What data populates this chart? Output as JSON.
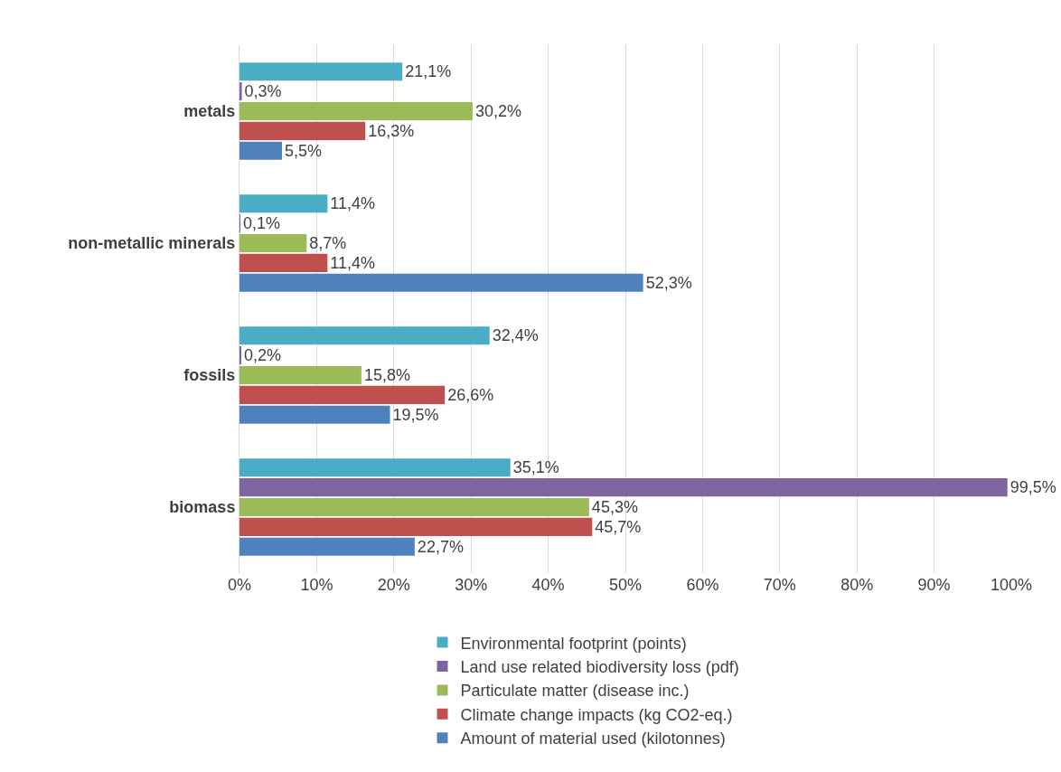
{
  "chart_data": {
    "type": "bar",
    "orientation": "horizontal",
    "categories": [
      "metals",
      "non-metallic minerals",
      "fossils",
      "biomass"
    ],
    "series": [
      {
        "name": "Environmental footprint (points)",
        "color": "#4bacc6",
        "values": [
          21.1,
          11.4,
          32.4,
          35.1
        ],
        "value_labels": [
          "21,1%",
          "11,4%",
          "32,4%",
          "35,1%"
        ]
      },
      {
        "name": "Land use related biodiversity loss (pdf)",
        "color": "#8064a2",
        "values": [
          0.3,
          0.1,
          0.2,
          99.5
        ],
        "value_labels": [
          "0,3%",
          "0,1%",
          "0,2%",
          "99,5%"
        ]
      },
      {
        "name": "Particulate matter (disease inc.)",
        "color": "#9bbb59",
        "values": [
          30.2,
          8.7,
          15.8,
          45.3
        ],
        "value_labels": [
          "30,2%",
          "8,7%",
          "15,8%",
          "45,3%"
        ]
      },
      {
        "name": "Climate change impacts (kg CO2-eq.)",
        "color": "#c0504d",
        "values": [
          16.3,
          11.4,
          26.6,
          45.7
        ],
        "value_labels": [
          "16,3%",
          "11,4%",
          "26,6%",
          "45,7%"
        ]
      },
      {
        "name": "Amount of material used (kilotonnes)",
        "color": "#4f81bd",
        "values": [
          5.5,
          52.3,
          19.5,
          22.7
        ],
        "value_labels": [
          "5,5%",
          "52,3%",
          "19,5%",
          "22,7%"
        ]
      }
    ],
    "xlim": [
      0,
      100
    ],
    "xticks": [
      {
        "value": 0,
        "label": "0%"
      },
      {
        "value": 10,
        "label": "10%"
      },
      {
        "value": 20,
        "label": "20%"
      },
      {
        "value": 30,
        "label": "30%"
      },
      {
        "value": 40,
        "label": "40%"
      },
      {
        "value": 50,
        "label": "50%"
      },
      {
        "value": 60,
        "label": "60%"
      },
      {
        "value": 70,
        "label": "70%"
      },
      {
        "value": 80,
        "label": "80%"
      },
      {
        "value": 90,
        "label": "90%"
      },
      {
        "value": 100,
        "label": "100%"
      }
    ],
    "grid": "x",
    "legend": "bottom"
  }
}
